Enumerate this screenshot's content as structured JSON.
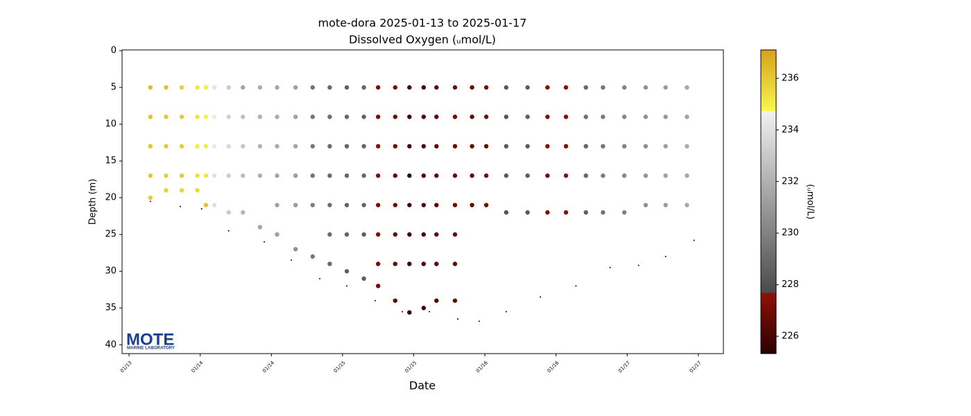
{
  "chart_data": {
    "type": "scatter",
    "title": "mote-dora 2025-01-13 to 2025-01-17",
    "subtitle": "Dissolved Oxygen (ᵤmol/L)",
    "x_label": "Date",
    "y_label": "Depth (m)",
    "xlim": [
      13.451,
      17.676
    ],
    "xticks": [
      {
        "value": 13.5,
        "label": "01/13"
      },
      {
        "value": 14.0,
        "label": "01/14"
      },
      {
        "value": 14.5,
        "label": "01/14"
      },
      {
        "value": 15.0,
        "label": "01/15"
      },
      {
        "value": 15.5,
        "label": "01/15"
      },
      {
        "value": 16.0,
        "label": "01/16"
      },
      {
        "value": 16.5,
        "label": "01/16"
      },
      {
        "value": 17.0,
        "label": "01/17"
      },
      {
        "value": 17.5,
        "label": "01/17"
      }
    ],
    "ylim": [
      41.2,
      -0.1
    ],
    "yticks": [
      0,
      5,
      10,
      15,
      20,
      25,
      30,
      35,
      40
    ],
    "colorbar": {
      "label": "(ᵤmol/L)",
      "lim": [
        225.33,
        237.1
      ],
      "ticks": [
        226,
        228,
        230,
        232,
        234,
        236
      ],
      "stops": [
        {
          "value": 225.33,
          "color": "#2a0000"
        },
        {
          "value": 227.68,
          "color": "#8e1208"
        },
        {
          "value": 227.68,
          "color": "#4a4a4a"
        },
        {
          "value": 234.73,
          "color": "#f2f2f2"
        },
        {
          "value": 234.73,
          "color": "#f7f74e"
        },
        {
          "value": 237.1,
          "color": "#d6a21a"
        }
      ]
    },
    "profiles": [
      {
        "x": 13.65,
        "depths": [
          5,
          9,
          13,
          17,
          20
        ],
        "values": [
          236.4,
          236.2,
          236.1,
          236,
          236
        ]
      },
      {
        "x": 13.76,
        "depths": [
          5,
          9,
          13,
          17,
          19
        ],
        "values": [
          236.3,
          236.1,
          236,
          235.9,
          235.8
        ]
      },
      {
        "x": 13.87,
        "depths": [
          5,
          9,
          13,
          17,
          19
        ],
        "values": [
          235.8,
          236,
          235.9,
          236,
          235.7
        ]
      },
      {
        "x": 13.98,
        "depths": [
          5,
          9,
          13,
          17,
          19
        ],
        "values": [
          235.2,
          235.3,
          235.1,
          235.4,
          235.6
        ]
      },
      {
        "x": 14.04,
        "depths": [
          5,
          9,
          13,
          17,
          21
        ],
        "values": [
          235,
          234.9,
          235.1,
          235.2,
          236.2
        ]
      },
      {
        "x": 14.1,
        "depths": [
          5,
          9,
          13,
          17,
          21
        ],
        "values": [
          234.2,
          234.4,
          234.3,
          234,
          233.9
        ]
      },
      {
        "x": 14.2,
        "depths": [
          5,
          9,
          13,
          17,
          22
        ],
        "values": [
          233,
          233.4,
          233.6,
          233.2,
          233
        ]
      },
      {
        "x": 14.3,
        "depths": [
          5,
          9,
          13,
          17,
          22
        ],
        "values": [
          231.5,
          232.6,
          232.8,
          232.4,
          232.2
        ]
      },
      {
        "x": 14.42,
        "depths": [
          5,
          9,
          13,
          17,
          24
        ],
        "values": [
          231.8,
          232,
          232.1,
          231.9,
          231.5
        ]
      },
      {
        "x": 14.54,
        "depths": [
          5,
          9,
          13,
          17,
          21,
          25
        ],
        "values": [
          231.6,
          231.8,
          231.7,
          231.5,
          231.3,
          231.2
        ]
      },
      {
        "x": 14.67,
        "depths": [
          5,
          9,
          13,
          17,
          21,
          27
        ],
        "values": [
          231.2,
          231.3,
          231.4,
          231.2,
          231,
          230.6
        ]
      },
      {
        "x": 14.79,
        "depths": [
          5,
          9,
          13,
          17,
          21,
          28
        ],
        "values": [
          229.3,
          229.5,
          229.6,
          229.4,
          229.8,
          229.6
        ]
      },
      {
        "x": 14.91,
        "depths": [
          5,
          9,
          13,
          17,
          21,
          25,
          29
        ],
        "values": [
          229,
          229.2,
          229.1,
          229,
          229.2,
          229.1,
          229
        ]
      },
      {
        "x": 15.03,
        "depths": [
          5,
          9,
          13,
          17,
          21,
          25,
          30
        ],
        "values": [
          228.7,
          228.9,
          228.8,
          228.9,
          228.7,
          228.8,
          228.6
        ]
      },
      {
        "x": 15.15,
        "depths": [
          5,
          9,
          13,
          17,
          21,
          25,
          31
        ],
        "values": [
          228.9,
          228.7,
          228.8,
          228.9,
          228.8,
          228.6,
          228.5
        ]
      },
      {
        "x": 15.25,
        "depths": [
          5,
          9,
          13,
          17,
          21,
          25,
          29,
          32
        ],
        "values": [
          227.3,
          227.2,
          227.4,
          227.3,
          227.2,
          227.3,
          227.1,
          227
        ]
      },
      {
        "x": 15.37,
        "depths": [
          5,
          9,
          13,
          17,
          21,
          25,
          29,
          34
        ],
        "values": [
          227,
          226.9,
          227,
          226.8,
          226.9,
          226.8,
          226.7,
          226.6
        ]
      },
      {
        "x": 15.47,
        "depths": [
          5,
          9,
          13,
          17,
          21,
          25,
          29,
          35.6
        ],
        "values": [
          226,
          225.9,
          226,
          225.8,
          225.9,
          226,
          225.8,
          225.6
        ]
      },
      {
        "x": 15.57,
        "depths": [
          5,
          9,
          13,
          17,
          21,
          25,
          29,
          35
        ],
        "values": [
          226,
          226.2,
          226.1,
          226.3,
          226.2,
          226.1,
          226,
          225.9
        ]
      },
      {
        "x": 15.66,
        "depths": [
          5,
          9,
          13,
          17,
          21,
          25,
          29,
          34
        ],
        "values": [
          226.6,
          226.5,
          226.7,
          226.6,
          226.5,
          226.6,
          226.4,
          226.3
        ]
      },
      {
        "x": 15.79,
        "depths": [
          5,
          9,
          13,
          17,
          21,
          25,
          29,
          34
        ],
        "values": [
          226.8,
          226.9,
          226.7,
          226.8,
          226.9,
          226.8,
          226.7,
          226.6
        ]
      },
      {
        "x": 15.91,
        "depths": [
          5,
          9,
          13,
          17,
          21
        ],
        "values": [
          226.8,
          226.6,
          226.7,
          226.5,
          226.6
        ]
      },
      {
        "x": 16.01,
        "depths": [
          5,
          9,
          13,
          17,
          21
        ],
        "values": [
          227.1,
          227,
          226.9,
          227.1,
          227
        ]
      },
      {
        "x": 16.15,
        "depths": [
          5,
          9,
          13,
          17,
          22
        ],
        "values": [
          228.3,
          228.2,
          228.4,
          228.3,
          228.1
        ]
      },
      {
        "x": 16.3,
        "depths": [
          5,
          9,
          13,
          17,
          22
        ],
        "values": [
          228.5,
          228.6,
          228.4,
          228.5,
          228.3
        ]
      },
      {
        "x": 16.44,
        "depths": [
          5,
          9,
          13,
          17,
          22
        ],
        "values": [
          227.4,
          227.3,
          227.5,
          227.2,
          227.3
        ]
      },
      {
        "x": 16.57,
        "depths": [
          5,
          9,
          13,
          17,
          22
        ],
        "values": [
          227.5,
          227.4,
          227.3,
          227.5,
          227.4
        ]
      },
      {
        "x": 16.71,
        "depths": [
          5,
          9,
          13,
          17,
          22
        ],
        "values": [
          229,
          229.2,
          228.8,
          228.9,
          228.7
        ]
      },
      {
        "x": 16.83,
        "depths": [
          5,
          9,
          13,
          17,
          22
        ],
        "values": [
          229.5,
          229.6,
          229.4,
          229.7,
          229.3
        ]
      },
      {
        "x": 16.98,
        "depths": [
          5,
          9,
          13,
          17,
          22
        ],
        "values": [
          230,
          230.2,
          230.1,
          230.3,
          230
        ]
      },
      {
        "x": 17.13,
        "depths": [
          5,
          9,
          13,
          17,
          21
        ],
        "values": [
          230.6,
          230.7,
          230.5,
          230.8,
          230.6
        ]
      },
      {
        "x": 17.27,
        "depths": [
          5,
          9,
          13,
          17,
          21
        ],
        "values": [
          231.1,
          231,
          231.2,
          231.3,
          231.1
        ]
      },
      {
        "x": 17.42,
        "depths": [
          5,
          9,
          13,
          17,
          21
        ],
        "values": [
          231.6,
          231.4,
          231.7,
          231.5,
          231.6
        ]
      }
    ],
    "bottom": {
      "color": "#000000",
      "x": [
        13.65,
        13.86,
        14.01,
        14.2,
        14.45,
        14.64,
        14.84,
        15.03,
        15.23,
        15.42,
        15.61,
        15.81,
        15.96,
        16.15,
        16.39,
        16.64,
        16.88,
        17.08,
        17.27,
        17.47
      ],
      "depths": [
        20.5,
        21.2,
        21.5,
        24.5,
        26,
        28.5,
        31,
        32,
        34,
        35.5,
        35.5,
        36.5,
        36.8,
        35.5,
        33.5,
        32,
        29.5,
        29.2,
        28,
        25.8
      ]
    }
  },
  "logo": {
    "name": "MOTE",
    "subtitle": "MARINE LABORATORY"
  }
}
